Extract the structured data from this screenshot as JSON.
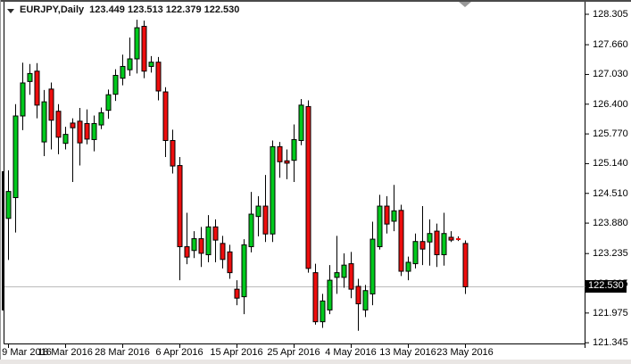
{
  "window": {
    "symbol_period": "EURJPY,Daily",
    "title_ohlc": "123.449 123.513 122.379 122.530"
  },
  "price_tag": {
    "value": "122.530"
  },
  "colors": {
    "up_fill": "#00C91D",
    "down_fill": "#ED0E0E",
    "outline": "#000000",
    "background": "#FFFFFF",
    "plot_border": "#000000",
    "current_price_line": "#BBBBBB",
    "tag_bg": "#000000",
    "tag_text": "#FFFFFF",
    "shift_marker": "#999999",
    "axis_text": "#000000"
  },
  "chart_data": {
    "type": "candlestick",
    "symbol": "EURJPY",
    "timeframe": "Daily",
    "title": "EURJPY,Daily 123.449 123.513 122.379 122.530",
    "grid": "off",
    "current_price": 122.53,
    "y_axis_labels": [
      "128.305",
      "127.660",
      "127.030",
      "126.400",
      "125.770",
      "125.140",
      "124.510",
      "123.880",
      "123.235",
      "122.605",
      "121.975",
      "121.345"
    ],
    "y_axis_prices": [
      128.305,
      127.66,
      127.03,
      126.4,
      125.77,
      125.14,
      124.51,
      123.88,
      123.235,
      122.605,
      121.975,
      121.345
    ],
    "ylim": [
      121.2,
      128.6
    ],
    "x_ticks": [
      {
        "label": "9 Mar 2016",
        "bar_index": 0
      },
      {
        "label": "18 Mar 2016",
        "bar_index": 8
      },
      {
        "label": "28 Mar 2016",
        "bar_index": 16
      },
      {
        "label": "6 Apr 2016",
        "bar_index": 24
      },
      {
        "label": "15 Apr 2016",
        "bar_index": 32
      },
      {
        "label": "25 Apr 2016",
        "bar_index": 40
      },
      {
        "label": "4 May 2016",
        "bar_index": 48
      },
      {
        "label": "13 May 2016",
        "bar_index": 56
      },
      {
        "label": "23 May 2016",
        "bar_index": 64
      }
    ],
    "clipped_prev_bar_range": [
      124.98,
      122.03
    ],
    "bars": [
      {
        "date": "9 Mar 2016",
        "o": 123.98,
        "h": 125.0,
        "l": 123.1,
        "c": 124.55
      },
      {
        "date": "10 Mar 2016",
        "o": 124.42,
        "h": 126.4,
        "l": 123.68,
        "c": 126.15
      },
      {
        "date": "11 Mar 2016",
        "o": 126.15,
        "h": 127.28,
        "l": 125.85,
        "c": 126.85
      },
      {
        "date": "13 Mar 2016",
        "o": 126.88,
        "h": 127.25,
        "l": 126.6,
        "c": 127.05
      },
      {
        "date": "14 Mar 2016",
        "o": 127.1,
        "h": 127.27,
        "l": 126.1,
        "c": 126.38
      },
      {
        "date": "15 Mar 2016",
        "o": 125.6,
        "h": 126.7,
        "l": 125.3,
        "c": 126.45
      },
      {
        "date": "16 Mar 2016",
        "o": 126.72,
        "h": 126.86,
        "l": 125.44,
        "c": 126.06
      },
      {
        "date": "17 Mar 2016",
        "o": 126.25,
        "h": 126.4,
        "l": 125.34,
        "c": 125.7
      },
      {
        "date": "18 Mar 2016",
        "o": 125.57,
        "h": 125.92,
        "l": 125.44,
        "c": 125.76
      },
      {
        "date": "20 Mar 2016",
        "o": 126.0,
        "h": 126.1,
        "l": 124.75,
        "c": 125.9
      },
      {
        "date": "21 Mar 2016",
        "o": 126.04,
        "h": 126.32,
        "l": 125.1,
        "c": 125.58
      },
      {
        "date": "22 Mar 2016",
        "o": 125.99,
        "h": 126.29,
        "l": 125.55,
        "c": 125.66
      },
      {
        "date": "23 Mar 2016",
        "o": 125.65,
        "h": 126.16,
        "l": 125.4,
        "c": 125.99
      },
      {
        "date": "24 Mar 2016",
        "o": 125.96,
        "h": 126.33,
        "l": 125.87,
        "c": 126.22
      },
      {
        "date": "25 Mar 2016",
        "o": 126.27,
        "h": 126.71,
        "l": 126.09,
        "c": 126.6
      },
      {
        "date": "27 Mar 2016",
        "o": 126.61,
        "h": 127.14,
        "l": 126.47,
        "c": 127.01
      },
      {
        "date": "28 Mar 2016",
        "o": 126.95,
        "h": 127.45,
        "l": 126.8,
        "c": 127.2
      },
      {
        "date": "29 Mar 2016",
        "o": 127.13,
        "h": 127.81,
        "l": 127.0,
        "c": 127.36
      },
      {
        "date": "30 Mar 2016",
        "o": 127.36,
        "h": 128.19,
        "l": 127.05,
        "c": 128.02
      },
      {
        "date": "31 Mar 2016",
        "o": 128.05,
        "h": 128.17,
        "l": 126.95,
        "c": 127.1
      },
      {
        "date": "1 Apr 2016",
        "o": 127.2,
        "h": 127.42,
        "l": 127.07,
        "c": 127.29
      },
      {
        "date": "3 Apr 2016",
        "o": 127.29,
        "h": 127.4,
        "l": 126.48,
        "c": 126.68
      },
      {
        "date": "4 Apr 2016",
        "o": 126.66,
        "h": 126.76,
        "l": 125.28,
        "c": 125.63
      },
      {
        "date": "5 Apr 2016",
        "o": 125.63,
        "h": 125.86,
        "l": 124.93,
        "c": 125.09
      },
      {
        "date": "6 Apr 2016",
        "o": 125.1,
        "h": 125.28,
        "l": 122.67,
        "c": 123.38
      },
      {
        "date": "7 Apr 2016",
        "o": 123.38,
        "h": 124.1,
        "l": 123.01,
        "c": 123.16
      },
      {
        "date": "8 Apr 2016",
        "o": 123.3,
        "h": 123.71,
        "l": 123.14,
        "c": 123.55
      },
      {
        "date": "10 Apr 2016",
        "o": 123.55,
        "h": 123.8,
        "l": 122.95,
        "c": 123.24
      },
      {
        "date": "11 Apr 2016",
        "o": 123.21,
        "h": 124.05,
        "l": 123.05,
        "c": 123.8
      },
      {
        "date": "12 Apr 2016",
        "o": 123.8,
        "h": 123.96,
        "l": 123.05,
        "c": 123.52
      },
      {
        "date": "13 Apr 2016",
        "o": 123.45,
        "h": 123.61,
        "l": 122.92,
        "c": 123.11
      },
      {
        "date": "14 Apr 2016",
        "o": 123.27,
        "h": 123.42,
        "l": 122.7,
        "c": 122.83
      },
      {
        "date": "15 Apr 2016",
        "o": 122.48,
        "h": 122.67,
        "l": 122.14,
        "c": 122.29
      },
      {
        "date": "17 Apr 2016",
        "o": 122.32,
        "h": 123.54,
        "l": 121.95,
        "c": 123.42
      },
      {
        "date": "18 Apr 2016",
        "o": 123.38,
        "h": 124.54,
        "l": 123.26,
        "c": 124.07
      },
      {
        "date": "19 Apr 2016",
        "o": 124.02,
        "h": 124.45,
        "l": 123.6,
        "c": 124.24
      },
      {
        "date": "20 Apr 2016",
        "o": 124.24,
        "h": 124.9,
        "l": 123.48,
        "c": 123.65
      },
      {
        "date": "21 Apr 2016",
        "o": 123.65,
        "h": 125.63,
        "l": 123.48,
        "c": 125.5
      },
      {
        "date": "22 Apr 2016",
        "o": 125.5,
        "h": 125.6,
        "l": 124.84,
        "c": 125.18
      },
      {
        "date": "24 Apr 2016",
        "o": 125.2,
        "h": 125.44,
        "l": 124.81,
        "c": 125.15
      },
      {
        "date": "25 Apr 2016",
        "o": 125.21,
        "h": 125.97,
        "l": 124.75,
        "c": 125.65
      },
      {
        "date": "26 Apr 2016",
        "o": 125.63,
        "h": 126.51,
        "l": 125.53,
        "c": 126.38
      },
      {
        "date": "27 Apr 2016",
        "o": 126.35,
        "h": 126.48,
        "l": 122.83,
        "c": 122.92
      },
      {
        "date": "28 Apr 2016",
        "o": 122.83,
        "h": 123.02,
        "l": 121.73,
        "c": 121.79
      },
      {
        "date": "29 Apr 2016",
        "o": 121.79,
        "h": 122.38,
        "l": 121.66,
        "c": 122.23
      },
      {
        "date": "1 May 2016",
        "o": 122.04,
        "h": 122.99,
        "l": 121.95,
        "c": 122.67
      },
      {
        "date": "2 May 2016",
        "o": 122.73,
        "h": 123.61,
        "l": 122.38,
        "c": 122.83
      },
      {
        "date": "3 May 2016",
        "o": 122.73,
        "h": 123.24,
        "l": 122.51,
        "c": 122.99
      },
      {
        "date": "4 May 2016",
        "o": 123.02,
        "h": 123.27,
        "l": 122.29,
        "c": 122.48
      },
      {
        "date": "5 May 2016",
        "o": 122.54,
        "h": 122.7,
        "l": 121.6,
        "c": 122.17
      },
      {
        "date": "6 May 2016",
        "o": 122.04,
        "h": 122.57,
        "l": 121.89,
        "c": 122.45
      },
      {
        "date": "8 May 2016",
        "o": 122.38,
        "h": 123.91,
        "l": 122.14,
        "c": 123.54
      },
      {
        "date": "9 May 2016",
        "o": 123.38,
        "h": 124.48,
        "l": 123.32,
        "c": 124.24
      },
      {
        "date": "10 May 2016",
        "o": 124.24,
        "h": 124.45,
        "l": 123.66,
        "c": 123.86
      },
      {
        "date": "11 May 2016",
        "o": 123.92,
        "h": 124.69,
        "l": 123.71,
        "c": 124.14
      },
      {
        "date": "12 May 2016",
        "o": 124.15,
        "h": 124.27,
        "l": 122.76,
        "c": 122.86
      },
      {
        "date": "13 May 2016",
        "o": 122.86,
        "h": 123.17,
        "l": 122.67,
        "c": 123.05
      },
      {
        "date": "15 May 2016",
        "o": 123.02,
        "h": 123.66,
        "l": 122.92,
        "c": 123.49
      },
      {
        "date": "16 May 2016",
        "o": 123.49,
        "h": 124.24,
        "l": 122.99,
        "c": 123.33
      },
      {
        "date": "17 May 2016",
        "o": 123.48,
        "h": 123.96,
        "l": 122.98,
        "c": 123.66
      },
      {
        "date": "18 May 2016",
        "o": 123.71,
        "h": 123.87,
        "l": 122.95,
        "c": 123.21
      },
      {
        "date": "19 May 2016",
        "o": 123.21,
        "h": 124.1,
        "l": 122.98,
        "c": 123.66
      },
      {
        "date": "20 May 2016",
        "o": 123.58,
        "h": 123.71,
        "l": 123.48,
        "c": 123.52
      },
      {
        "date": "22 May 2016",
        "o": 123.55,
        "h": 123.6,
        "l": 123.5,
        "c": 123.53
      },
      {
        "date": "23 May 2016",
        "o": 123.449,
        "h": 123.513,
        "l": 122.379,
        "c": 122.53
      }
    ]
  }
}
